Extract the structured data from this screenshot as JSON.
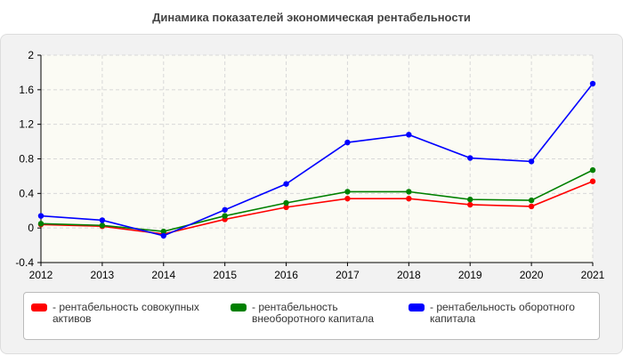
{
  "title": "Динамика показателей экономическая рентабельности",
  "chart_data": {
    "type": "line",
    "title": "Динамика показателей экономическая рентабельности",
    "x": [
      "2012",
      "2013",
      "2014",
      "2015",
      "2016",
      "2017",
      "2018",
      "2019",
      "2020",
      "2021"
    ],
    "ylim": [
      -0.4,
      2
    ],
    "yticks": [
      "-0.4",
      "0",
      "0.4",
      "0.8",
      "1.2",
      "1.6",
      "2"
    ],
    "grid": true,
    "legend_position": "bottom",
    "series": [
      {
        "name": "- рентабельность совокупных активов",
        "color": "#ff0000",
        "values": [
          0.04,
          0.02,
          -0.07,
          0.1,
          0.24,
          0.34,
          0.34,
          0.27,
          0.25,
          0.54
        ]
      },
      {
        "name": "- рентабельность внеоборотного капитала",
        "color": "#008000",
        "values": [
          0.05,
          0.03,
          -0.04,
          0.14,
          0.29,
          0.42,
          0.42,
          0.33,
          0.32,
          0.67
        ]
      },
      {
        "name": "- рентабельность оборотного капитала",
        "color": "#0000ff",
        "values": [
          0.14,
          0.09,
          -0.09,
          0.21,
          0.51,
          0.99,
          1.08,
          0.81,
          0.77,
          1.67
        ]
      }
    ]
  }
}
